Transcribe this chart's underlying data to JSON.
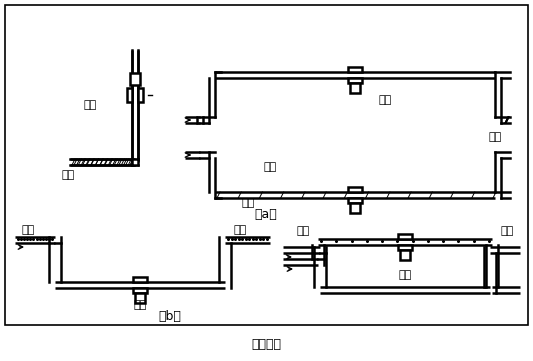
{
  "title": "图（四）",
  "label_a": "（a）",
  "label_b": "（b）",
  "bg_color": "#ffffff",
  "lc": "#000000",
  "tc": "#000000",
  "lw": 1.8,
  "figsize": [
    5.33,
    3.61
  ],
  "dpi": 100,
  "correct": "正确",
  "wrong": "错误",
  "liquid": "液体",
  "bubble": "气泡"
}
